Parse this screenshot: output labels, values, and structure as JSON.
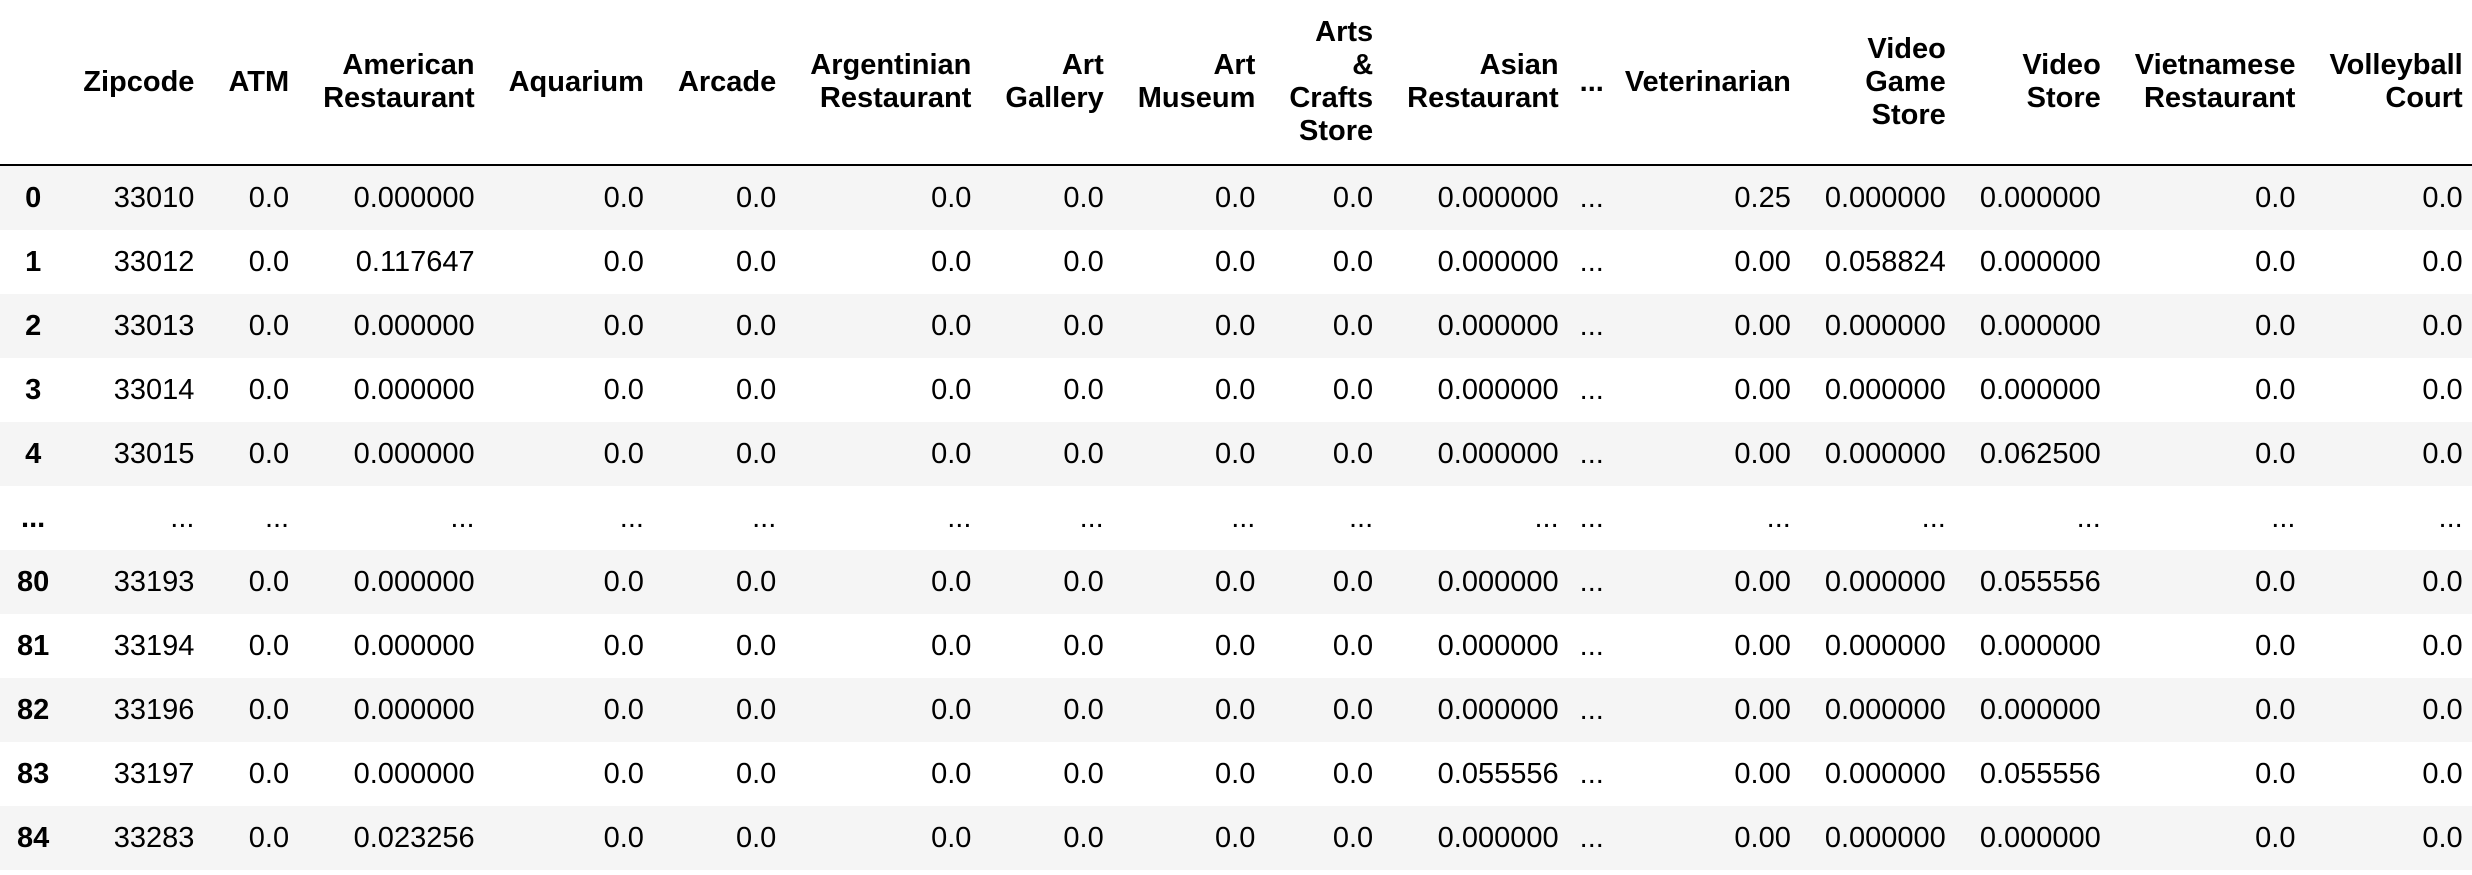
{
  "table": {
    "columns": [
      "",
      "Zipcode",
      "ATM",
      "American Restaurant",
      "Aquarium",
      "Arcade",
      "Argentinian Restaurant",
      "Art Gallery",
      "Art Museum",
      "Arts & Crafts Store",
      "Asian Restaurant",
      "...",
      "Veterinarian",
      "Video Game Store",
      "Video Store",
      "Vietnamese Restaurant",
      "Volleyball Court"
    ],
    "rows": [
      [
        "0",
        "33010",
        "0.0",
        "0.000000",
        "0.0",
        "0.0",
        "0.0",
        "0.0",
        "0.0",
        "0.0",
        "0.000000",
        "...",
        "0.25",
        "0.000000",
        "0.000000",
        "0.0",
        "0.0"
      ],
      [
        "1",
        "33012",
        "0.0",
        "0.117647",
        "0.0",
        "0.0",
        "0.0",
        "0.0",
        "0.0",
        "0.0",
        "0.000000",
        "...",
        "0.00",
        "0.058824",
        "0.000000",
        "0.0",
        "0.0"
      ],
      [
        "2",
        "33013",
        "0.0",
        "0.000000",
        "0.0",
        "0.0",
        "0.0",
        "0.0",
        "0.0",
        "0.0",
        "0.000000",
        "...",
        "0.00",
        "0.000000",
        "0.000000",
        "0.0",
        "0.0"
      ],
      [
        "3",
        "33014",
        "0.0",
        "0.000000",
        "0.0",
        "0.0",
        "0.0",
        "0.0",
        "0.0",
        "0.0",
        "0.000000",
        "...",
        "0.00",
        "0.000000",
        "0.000000",
        "0.0",
        "0.0"
      ],
      [
        "4",
        "33015",
        "0.0",
        "0.000000",
        "0.0",
        "0.0",
        "0.0",
        "0.0",
        "0.0",
        "0.0",
        "0.000000",
        "...",
        "0.00",
        "0.000000",
        "0.062500",
        "0.0",
        "0.0"
      ],
      [
        "...",
        "...",
        "...",
        "...",
        "...",
        "...",
        "...",
        "...",
        "...",
        "...",
        "...",
        "...",
        "...",
        "...",
        "...",
        "...",
        "..."
      ],
      [
        "80",
        "33193",
        "0.0",
        "0.000000",
        "0.0",
        "0.0",
        "0.0",
        "0.0",
        "0.0",
        "0.0",
        "0.000000",
        "...",
        "0.00",
        "0.000000",
        "0.055556",
        "0.0",
        "0.0"
      ],
      [
        "81",
        "33194",
        "0.0",
        "0.000000",
        "0.0",
        "0.0",
        "0.0",
        "0.0",
        "0.0",
        "0.0",
        "0.000000",
        "...",
        "0.00",
        "0.000000",
        "0.000000",
        "0.0",
        "0.0"
      ],
      [
        "82",
        "33196",
        "0.0",
        "0.000000",
        "0.0",
        "0.0",
        "0.0",
        "0.0",
        "0.0",
        "0.0",
        "0.000000",
        "...",
        "0.00",
        "0.000000",
        "0.000000",
        "0.0",
        "0.0"
      ],
      [
        "83",
        "33197",
        "0.0",
        "0.000000",
        "0.0",
        "0.0",
        "0.0",
        "0.0",
        "0.0",
        "0.0",
        "0.055556",
        "...",
        "0.00",
        "0.000000",
        "0.055556",
        "0.0",
        "0.0"
      ],
      [
        "84",
        "33283",
        "0.0",
        "0.023256",
        "0.0",
        "0.0",
        "0.0",
        "0.0",
        "0.0",
        "0.0",
        "0.000000",
        "...",
        "0.00",
        "0.000000",
        "0.000000",
        "0.0",
        "0.0"
      ]
    ]
  }
}
